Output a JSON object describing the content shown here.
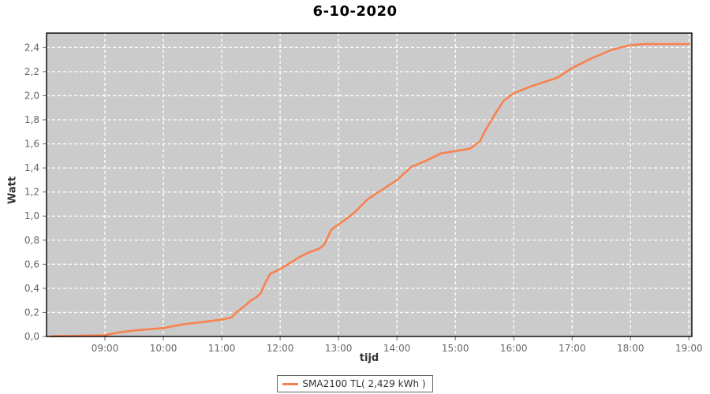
{
  "colors": {
    "line": "#F8824E",
    "plot_bg": "#CBCBCB",
    "grid": "#FFFFFF",
    "plot_border": "#000000",
    "tick": "#666666",
    "tick_label": "#666666",
    "axis_label": "#333333",
    "title": "#000000",
    "legend_border": "#666666",
    "outer_bg": "#FFFFFF"
  },
  "chart_data": {
    "type": "line",
    "title": "6-10-2020",
    "xlabel": "tijd",
    "ylabel": "Watt",
    "grid": true,
    "legend_position": "bottom",
    "xlim": [
      8.0,
      19.05
    ],
    "ylim": [
      0,
      2.52
    ],
    "x_tick_values": [
      9,
      10,
      11,
      12,
      13,
      14,
      15,
      16,
      17,
      18,
      19
    ],
    "x_tick_labels": [
      "09:00",
      "10:00",
      "11:00",
      "12:00",
      "13:00",
      "14:00",
      "15:00",
      "16:00",
      "17:00",
      "18:00",
      "19:00"
    ],
    "y_tick_values": [
      0,
      0.2,
      0.4,
      0.6,
      0.8,
      1.0,
      1.2,
      1.4,
      1.6,
      1.8,
      2.0,
      2.2,
      2.4
    ],
    "y_tick_labels": [
      "0,0",
      "0,2",
      "0,4",
      "0,6",
      "0,8",
      "1,0",
      "1,2",
      "1,4",
      "1,6",
      "1,8",
      "2,0",
      "2,2",
      "2,4"
    ],
    "series": [
      {
        "name": "SMA2100 TL( 2,429 kWh )",
        "total_kwh_label": "2,429 kWh",
        "x": [
          8.08,
          8.5,
          9.0,
          9.1,
          9.25,
          9.5,
          10.0,
          10.33,
          10.67,
          11.0,
          11.17,
          11.25,
          11.42,
          11.5,
          11.58,
          11.67,
          11.75,
          11.83,
          12.0,
          12.17,
          12.33,
          12.5,
          12.67,
          12.75,
          12.88,
          13.0,
          13.25,
          13.5,
          13.75,
          14.0,
          14.25,
          14.5,
          14.75,
          15.0,
          15.25,
          15.42,
          15.5,
          15.67,
          15.83,
          16.0,
          16.25,
          16.5,
          16.75,
          17.0,
          17.33,
          17.67,
          18.0,
          18.25,
          18.5,
          19.0
        ],
        "y": [
          0.002,
          0.005,
          0.01,
          0.02,
          0.035,
          0.05,
          0.07,
          0.1,
          0.12,
          0.14,
          0.16,
          0.2,
          0.265,
          0.3,
          0.32,
          0.36,
          0.45,
          0.52,
          0.56,
          0.61,
          0.66,
          0.7,
          0.73,
          0.76,
          0.89,
          0.93,
          1.02,
          1.14,
          1.22,
          1.3,
          1.41,
          1.46,
          1.52,
          1.54,
          1.56,
          1.62,
          1.7,
          1.84,
          1.96,
          2.02,
          2.07,
          2.11,
          2.15,
          2.23,
          2.31,
          2.38,
          2.42,
          2.429,
          2.429,
          2.429
        ]
      }
    ]
  }
}
